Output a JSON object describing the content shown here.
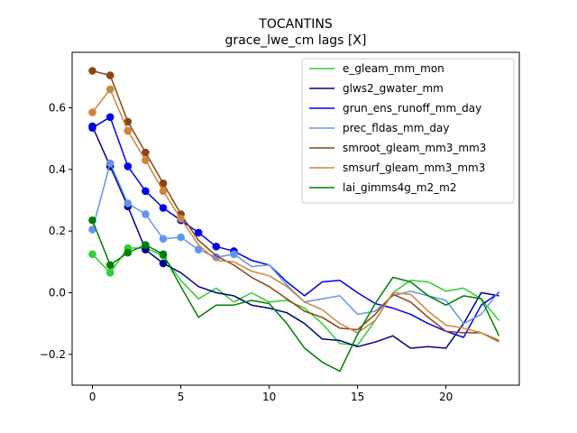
{
  "chart_data": {
    "type": "line",
    "title": "TOCANTINS",
    "subtitle": "grace_lwe_cm lags [X]",
    "xlabel": "",
    "ylabel": "",
    "xlim": [
      -1.15,
      24.15
    ],
    "ylim": [
      -0.3,
      0.78
    ],
    "xticks": [
      0,
      5,
      10,
      15,
      20
    ],
    "yticks": [
      -0.2,
      0.0,
      0.2,
      0.4,
      0.6
    ],
    "ytick_labels": [
      "−0.2",
      "0.0",
      "0.2",
      "0.4",
      "0.6"
    ],
    "grid": false,
    "legend_position": "top-right",
    "x": [
      0,
      1,
      2,
      3,
      4,
      5,
      6,
      7,
      8,
      9,
      10,
      11,
      12,
      13,
      14,
      15,
      16,
      17,
      18,
      19,
      20,
      21,
      22,
      23
    ],
    "series": [
      {
        "name": "e_gleam_mm_mon",
        "color": "#32cd32",
        "marker_count": 5,
        "values": [
          0.125,
          0.065,
          0.145,
          0.145,
          0.12,
          0.04,
          -0.02,
          0.015,
          -0.03,
          0.0,
          -0.03,
          -0.025,
          -0.05,
          -0.1,
          -0.165,
          -0.17,
          -0.09,
          0.0,
          0.04,
          0.035,
          0.005,
          0.015,
          -0.02,
          -0.09
        ]
      },
      {
        "name": "glws2_gwater_mm",
        "color": "#00008b",
        "marker_count": 5,
        "values": [
          0.54,
          0.41,
          0.28,
          0.14,
          0.095,
          0.065,
          0.02,
          0.0,
          -0.01,
          -0.04,
          -0.05,
          -0.065,
          -0.1,
          -0.15,
          -0.155,
          -0.175,
          -0.16,
          -0.14,
          -0.18,
          -0.175,
          -0.18,
          -0.1,
          0.0,
          -0.01
        ]
      },
      {
        "name": "grun_ens_runoff_mm_day",
        "color": "#0000ee",
        "marker_count": 9,
        "values": [
          0.535,
          0.57,
          0.41,
          0.33,
          0.275,
          0.235,
          0.195,
          0.15,
          0.135,
          0.105,
          0.09,
          0.035,
          -0.01,
          0.035,
          0.04,
          0.0,
          -0.035,
          -0.05,
          -0.07,
          -0.1,
          -0.125,
          -0.145,
          -0.04,
          0.0
        ]
      },
      {
        "name": "prec_fldas_mm_day",
        "color": "#6495ed",
        "marker_count": 9,
        "values": [
          0.205,
          0.42,
          0.29,
          0.255,
          0.175,
          0.18,
          0.14,
          0.115,
          0.125,
          0.085,
          0.09,
          0.025,
          -0.03,
          -0.02,
          -0.01,
          -0.07,
          -0.06,
          -0.01,
          0.005,
          -0.01,
          -0.025,
          -0.1,
          -0.07,
          0.005
        ]
      },
      {
        "name": "smroot_gleam_mm3_mm3",
        "color": "#8b4513",
        "marker_count": 6,
        "values": [
          0.72,
          0.705,
          0.555,
          0.455,
          0.355,
          0.255,
          0.17,
          0.12,
          0.09,
          0.05,
          0.02,
          -0.02,
          -0.06,
          -0.08,
          -0.115,
          -0.12,
          -0.07,
          -0.005,
          -0.03,
          -0.08,
          -0.125,
          -0.13,
          -0.13,
          -0.155
        ]
      },
      {
        "name": "smsurf_gleam_mm3_mm3",
        "color": "#cd853f",
        "marker_count": 6,
        "values": [
          0.585,
          0.66,
          0.525,
          0.43,
          0.33,
          0.24,
          0.155,
          0.105,
          0.1,
          0.07,
          0.055,
          0.02,
          -0.03,
          -0.055,
          -0.1,
          -0.13,
          -0.09,
          0.0,
          -0.005,
          -0.06,
          -0.105,
          -0.115,
          -0.13,
          -0.16
        ]
      },
      {
        "name": "lai_gimms4g_m2_m2",
        "color": "#008000",
        "marker_count": 5,
        "values": [
          0.235,
          0.09,
          0.13,
          0.155,
          0.125,
          0.02,
          -0.08,
          -0.04,
          -0.04,
          -0.025,
          -0.035,
          -0.1,
          -0.18,
          -0.225,
          -0.255,
          -0.135,
          -0.035,
          0.05,
          0.035,
          -0.01,
          -0.04,
          -0.01,
          -0.02,
          -0.14
        ]
      }
    ]
  }
}
